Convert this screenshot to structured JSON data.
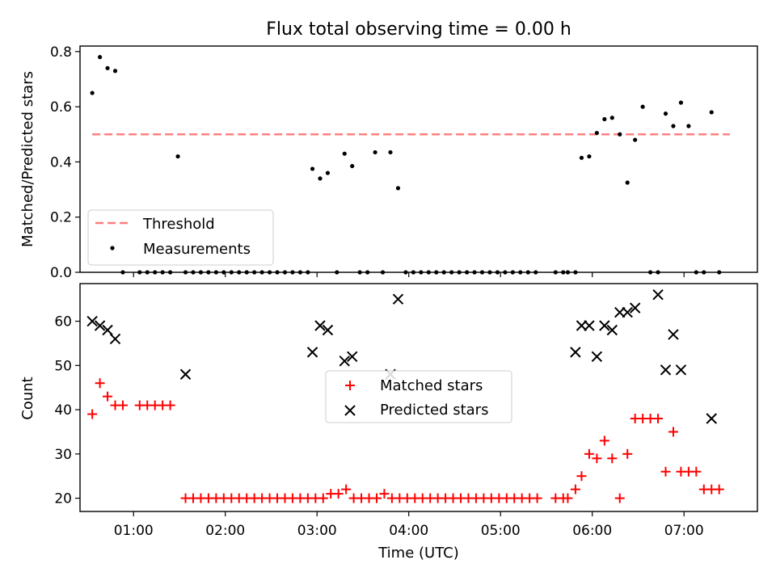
{
  "title": "Flux total observing time = 0.00 h",
  "colors": {
    "threshold": "#ff7f7f",
    "measurement": "#000000",
    "matched": "#ff0000",
    "predicted": "#000000"
  },
  "chart_data": [
    {
      "type": "scatter",
      "title": "Flux total observing time = 0.00 h",
      "xlabel": "",
      "ylabel": "Matched/Predicted stars",
      "xlim": [
        "00:25",
        "07:48"
      ],
      "ylim": [
        0,
        0.82
      ],
      "yticks": [
        "0.0",
        "0.2",
        "0.4",
        "0.6",
        "0.8"
      ],
      "legend": {
        "placement": "lower-left",
        "entries": [
          "Threshold",
          "Measurements"
        ]
      },
      "series": [
        {
          "name": "Threshold",
          "kind": "dashed-line",
          "x": [
            "00:33",
            "07:30"
          ],
          "y": [
            0.5,
            0.5
          ]
        },
        {
          "name": "Measurements",
          "kind": "dot",
          "x": [
            "00:33",
            "00:38",
            "00:43",
            "00:48",
            "00:53",
            "01:04",
            "01:09",
            "01:14",
            "01:19",
            "01:24",
            "01:29",
            "01:34",
            "01:39",
            "01:44",
            "01:49",
            "01:54",
            "01:59",
            "02:04",
            "02:09",
            "02:14",
            "02:19",
            "02:24",
            "02:29",
            "02:34",
            "02:39",
            "02:44",
            "02:49",
            "02:54",
            "02:57",
            "03:02",
            "03:07",
            "03:13",
            "03:18",
            "03:23",
            "03:28",
            "03:33",
            "03:38",
            "03:43",
            "03:48",
            "03:53",
            "03:58",
            "04:03",
            "04:08",
            "04:13",
            "04:18",
            "04:23",
            "04:28",
            "04:33",
            "04:38",
            "04:43",
            "04:48",
            "04:53",
            "04:58",
            "05:03",
            "05:08",
            "05:13",
            "05:18",
            "05:23",
            "05:36",
            "05:41",
            "05:44",
            "05:49",
            "05:53",
            "05:58",
            "06:03",
            "06:08",
            "06:13",
            "06:18",
            "06:23",
            "06:28",
            "06:33",
            "06:38",
            "06:43",
            "06:48",
            "06:53",
            "06:58",
            "07:03",
            "07:08",
            "07:13",
            "07:18",
            "07:23"
          ],
          "y": [
            0.65,
            0.78,
            0.74,
            0.73,
            0.0,
            0.0,
            0.0,
            0.0,
            0.0,
            0.0,
            0.42,
            0.0,
            0.0,
            0.0,
            0.0,
            0.0,
            0.0,
            0.0,
            0.0,
            0.0,
            0.0,
            0.0,
            0.0,
            0.0,
            0.0,
            0.0,
            0.0,
            0.0,
            0.375,
            0.34,
            0.36,
            0.0,
            0.43,
            0.385,
            0.0,
            0.0,
            0.435,
            0.0,
            0.435,
            0.305,
            0.0,
            0.0,
            0.0,
            0.0,
            0.0,
            0.0,
            0.0,
            0.0,
            0.0,
            0.0,
            0.0,
            0.0,
            0.0,
            0.0,
            0.0,
            0.0,
            0.0,
            0.0,
            0.0,
            0.0,
            0.0,
            0.0,
            0.415,
            0.42,
            0.505,
            0.555,
            0.56,
            0.5,
            0.325,
            0.48,
            0.6,
            0.0,
            0.0,
            0.575,
            0.53,
            0.615,
            0.53,
            0.0,
            0.0,
            0.58,
            0.0
          ]
        }
      ]
    },
    {
      "type": "scatter",
      "xlabel": "Time (UTC)",
      "ylabel": "Count",
      "xlim": [
        "00:25",
        "07:48"
      ],
      "ylim": [
        17,
        68.5
      ],
      "yticks": [
        "20",
        "30",
        "40",
        "50",
        "60"
      ],
      "xticks": [
        "01:00",
        "02:00",
        "03:00",
        "04:00",
        "05:00",
        "06:00",
        "07:00"
      ],
      "legend": {
        "placement": "center",
        "entries": [
          "Matched stars",
          "Predicted stars"
        ]
      },
      "series": [
        {
          "name": "Matched stars",
          "kind": "plus",
          "x": [
            "00:33",
            "00:38",
            "00:43",
            "00:48",
            "00:53",
            "01:04",
            "01:09",
            "01:14",
            "01:19",
            "01:24",
            "01:34",
            "01:39",
            "01:44",
            "01:49",
            "01:54",
            "01:59",
            "02:04",
            "02:09",
            "02:14",
            "02:19",
            "02:24",
            "02:29",
            "02:34",
            "02:39",
            "02:44",
            "02:49",
            "02:54",
            "02:59",
            "03:04",
            "03:09",
            "03:14",
            "03:19",
            "03:24",
            "03:29",
            "03:34",
            "03:39",
            "03:44",
            "03:49",
            "03:54",
            "03:59",
            "04:04",
            "04:09",
            "04:14",
            "04:19",
            "04:24",
            "04:29",
            "04:34",
            "04:39",
            "04:44",
            "04:49",
            "04:54",
            "04:59",
            "05:04",
            "05:09",
            "05:14",
            "05:19",
            "05:24",
            "05:36",
            "05:41",
            "05:44",
            "05:49",
            "05:53",
            "05:58",
            "06:03",
            "06:08",
            "06:13",
            "06:18",
            "06:23",
            "06:28",
            "06:33",
            "06:38",
            "06:43",
            "06:48",
            "06:53",
            "06:58",
            "07:03",
            "07:08",
            "07:13",
            "07:18",
            "07:23"
          ],
          "y": [
            39,
            46,
            43,
            41,
            41,
            41,
            41,
            41,
            41,
            41,
            20,
            20,
            20,
            20,
            20,
            20,
            20,
            20,
            20,
            20,
            20,
            20,
            20,
            20,
            20,
            20,
            20,
            20,
            20,
            21,
            21,
            22,
            20,
            20,
            20,
            20,
            21,
            20,
            20,
            20,
            20,
            20,
            20,
            20,
            20,
            20,
            20,
            20,
            20,
            20,
            20,
            20,
            20,
            20,
            20,
            20,
            20,
            20,
            20,
            20,
            22,
            25,
            30,
            29,
            33,
            29,
            20,
            30,
            38,
            38,
            38,
            38,
            26,
            35,
            26,
            26,
            26,
            22,
            22,
            22
          ]
        },
        {
          "name": "Predicted stars",
          "kind": "x",
          "x": [
            "00:33",
            "00:38",
            "00:43",
            "00:48",
            "01:34",
            "02:57",
            "03:02",
            "03:07",
            "03:18",
            "03:23",
            "03:48",
            "03:53",
            "05:49",
            "05:53",
            "05:58",
            "06:03",
            "06:08",
            "06:13",
            "06:18",
            "06:23",
            "06:28",
            "06:43",
            "06:48",
            "06:53",
            "06:58",
            "07:18"
          ],
          "y": [
            60,
            59,
            58,
            56,
            48,
            53,
            59,
            58,
            51,
            52,
            48,
            65,
            53,
            59,
            59,
            52,
            59,
            58,
            62,
            62,
            63,
            66,
            49,
            57,
            49,
            38
          ]
        }
      ]
    }
  ]
}
